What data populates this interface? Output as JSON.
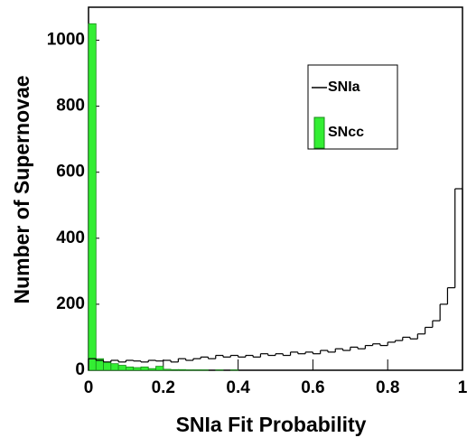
{
  "chart_data": {
    "type": "histogram",
    "x_label": "SNIa Fit Probability",
    "y_label": "Number of Supernovae",
    "bins": [
      0,
      0.02,
      0.04,
      0.06,
      0.08,
      0.1,
      0.12,
      0.14,
      0.16,
      0.18,
      0.2,
      0.22,
      0.24,
      0.26,
      0.28,
      0.3,
      0.32,
      0.34,
      0.36,
      0.38,
      0.4,
      0.42,
      0.44,
      0.46,
      0.48,
      0.5,
      0.52,
      0.54,
      0.56,
      0.58,
      0.6,
      0.62,
      0.64,
      0.66,
      0.68,
      0.7,
      0.72,
      0.74,
      0.76,
      0.78,
      0.8,
      0.82,
      0.84,
      0.86,
      0.88,
      0.9,
      0.92,
      0.94,
      0.96,
      0.98,
      1
    ],
    "series": [
      {
        "name": "SNIa",
        "color": "#000000",
        "fill": "none",
        "values": [
          35,
          30,
          25,
          30,
          25,
          30,
          28,
          25,
          30,
          28,
          30,
          25,
          35,
          30,
          35,
          40,
          35,
          45,
          40,
          45,
          40,
          45,
          40,
          50,
          45,
          50,
          45,
          55,
          50,
          55,
          50,
          60,
          55,
          65,
          60,
          70,
          65,
          75,
          80,
          75,
          85,
          90,
          100,
          95,
          110,
          130,
          150,
          200,
          250,
          550
        ]
      },
      {
        "name": "SNcc",
        "color": "#1a8a1a",
        "fill": "#33ee33",
        "values": [
          1050,
          35,
          25,
          20,
          15,
          10,
          8,
          10,
          5,
          12,
          3,
          2,
          2,
          1,
          1,
          1,
          0,
          1,
          0,
          1,
          0,
          0,
          0,
          0,
          0,
          0,
          0,
          0,
          0,
          0,
          0,
          0,
          0,
          0,
          0,
          0,
          0,
          0,
          0,
          0,
          0,
          0,
          0,
          0,
          0,
          0,
          0,
          0,
          0,
          0
        ]
      }
    ],
    "xlim": [
      0,
      1
    ],
    "xticks": [
      0,
      0.2,
      0.4,
      0.6,
      0.8,
      1
    ],
    "ylim": [
      0,
      1100
    ],
    "yticks": [
      0,
      200,
      400,
      600,
      800,
      1000
    ]
  }
}
